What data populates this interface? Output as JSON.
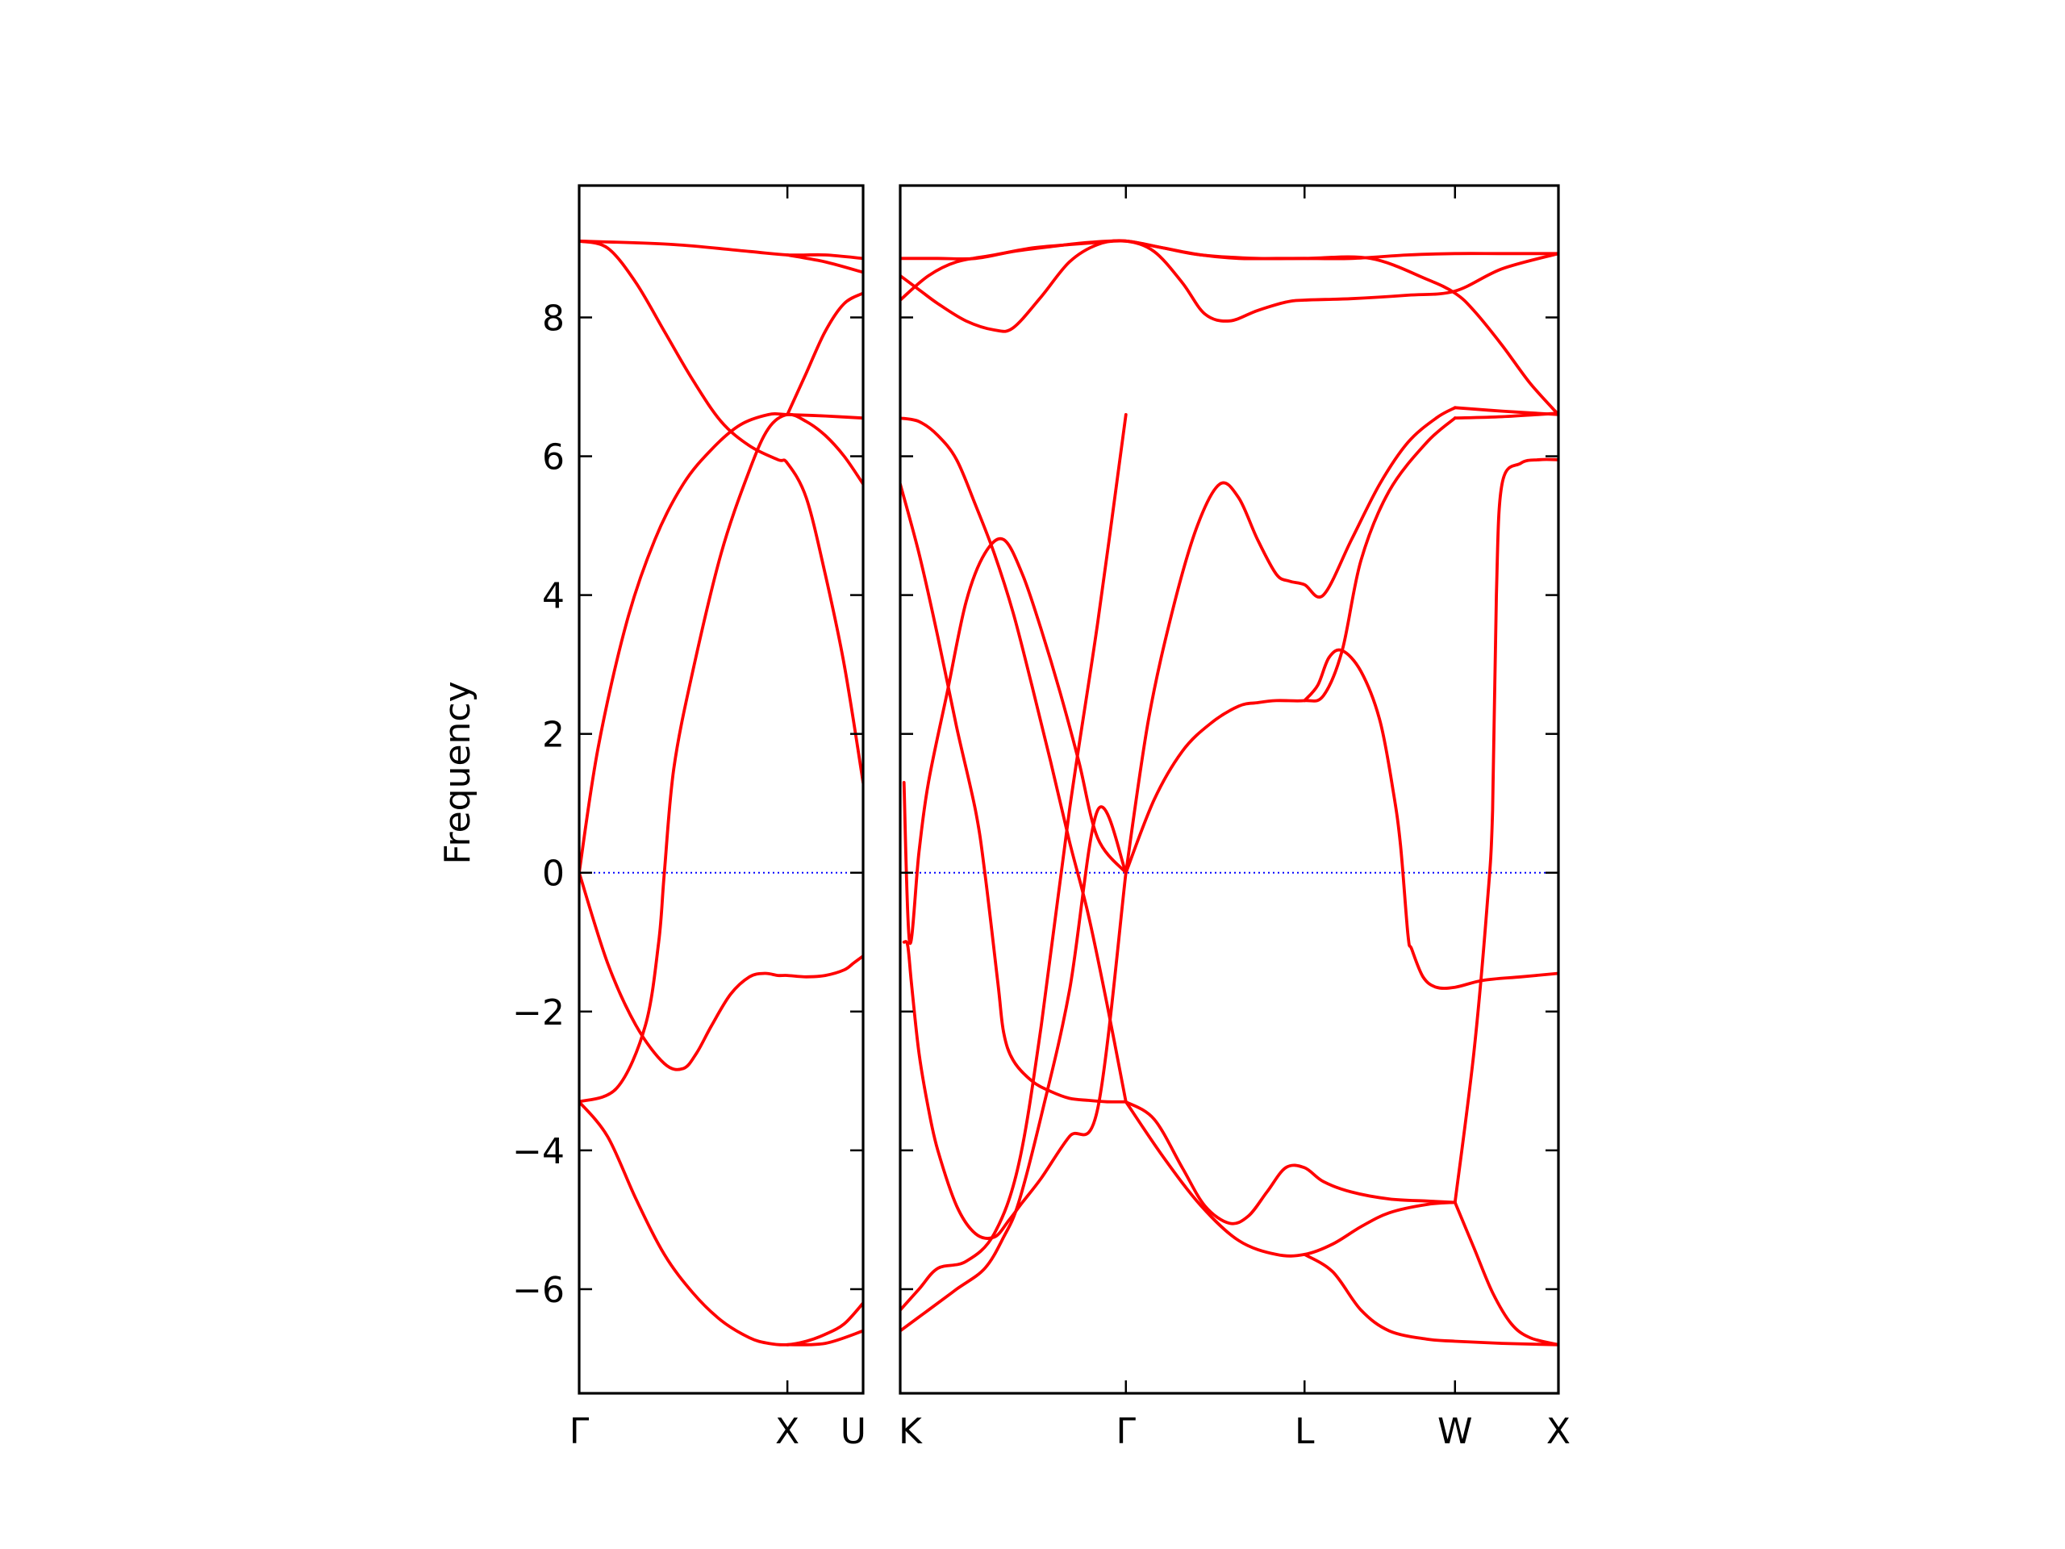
{
  "chart_data": {
    "type": "line",
    "ylabel": "Frequency",
    "ylim": [
      -7.5,
      9.9
    ],
    "yticks": [
      -6,
      -4,
      -2,
      0,
      2,
      4,
      6,
      8
    ],
    "ytick_labels": [
      "−6",
      "−4",
      "−2",
      "0",
      "2",
      "4",
      "6",
      "8"
    ],
    "band_color": "#ff0000",
    "zero_line_color": "#0000ff",
    "grid": false,
    "panels": [
      {
        "path": [
          "Γ",
          "X",
          "U"
        ],
        "x_range": [
          0,
          1.5
        ],
        "xticks": [
          {
            "x": 0,
            "label": "Γ"
          },
          {
            "x": 1.1,
            "label": "X"
          },
          {
            "x": 1.5,
            "label": "U"
          }
        ],
        "series": [
          {
            "x": [
              0,
              0.5,
              0.9,
              1.1,
              1.3,
              1.5
            ],
            "y": [
              9.1,
              9.05,
              8.95,
              8.9,
              8.9,
              8.85
            ]
          },
          {
            "x": [
              0,
              0.15,
              0.3,
              0.45,
              0.6,
              0.75,
              0.9,
              1.05,
              1.1,
              1.2,
              1.3,
              1.4,
              1.5
            ],
            "y": [
              9.1,
              9.0,
              8.5,
              7.8,
              7.1,
              6.5,
              6.15,
              5.95,
              5.9,
              5.4,
              4.3,
              3.0,
              1.3
            ]
          },
          {
            "x": [
              0,
              0.1,
              0.25,
              0.4,
              0.55,
              0.7,
              0.85,
              1.0,
              1.1,
              1.3,
              1.5
            ],
            "y": [
              0,
              1.8,
              3.6,
              4.8,
              5.6,
              6.1,
              6.45,
              6.6,
              6.6,
              6.58,
              6.55
            ]
          },
          {
            "x": [
              0,
              0.2,
              0.35,
              0.42,
              0.45,
              0.5,
              0.6,
              0.75,
              0.9,
              1.0,
              1.1,
              1.2,
              1.3,
              1.4,
              1.5
            ],
            "y": [
              -3.3,
              -3.1,
              -2.2,
              -1.0,
              0.0,
              1.5,
              2.9,
              4.6,
              5.8,
              6.4,
              6.6,
              6.5,
              6.3,
              6.0,
              5.6
            ]
          },
          {
            "x": [
              0,
              0.15,
              0.3,
              0.45,
              0.55,
              0.62,
              0.7,
              0.8,
              0.9,
              0.98,
              1.05,
              1.1,
              1.2,
              1.3,
              1.4,
              1.45,
              1.5
            ],
            "y": [
              0,
              -1.3,
              -2.2,
              -2.75,
              -2.82,
              -2.6,
              -2.2,
              -1.75,
              -1.5,
              -1.45,
              -1.48,
              -1.48,
              -1.5,
              -1.48,
              -1.4,
              -1.3,
              -1.2
            ]
          },
          {
            "x": [
              0,
              0.15,
              0.3,
              0.45,
              0.6,
              0.75,
              0.9,
              1.0,
              1.1,
              1.2,
              1.3,
              1.4,
              1.5
            ],
            "y": [
              -3.3,
              -3.8,
              -4.7,
              -5.5,
              -6.05,
              -6.45,
              -6.7,
              -6.78,
              -6.8,
              -6.75,
              -6.65,
              -6.5,
              -6.2
            ]
          },
          {
            "x": [
              1.1,
              1.3,
              1.5
            ],
            "y": [
              -6.8,
              -6.78,
              -6.6
            ]
          },
          {
            "x": [
              1.1,
              1.2,
              1.3,
              1.4,
              1.5
            ],
            "y": [
              6.6,
              7.2,
              7.8,
              8.2,
              8.35
            ]
          },
          {
            "x": [
              1.1,
              1.3,
              1.5
            ],
            "y": [
              8.9,
              8.8,
              8.65
            ]
          }
        ]
      },
      {
        "path": [
          "K",
          "Γ",
          "L",
          "W",
          "X"
        ],
        "x_range": [
          0,
          3.5
        ],
        "xticks": [
          {
            "x": 0,
            "label": "K"
          },
          {
            "x": 1.2,
            "label": "Γ"
          },
          {
            "x": 2.15,
            "label": "L"
          },
          {
            "x": 2.95,
            "label": "W"
          },
          {
            "x": 3.5,
            "label": "X"
          }
        ],
        "series": [
          {
            "x": [
              0,
              0.2,
              0.4,
              0.6,
              0.8,
              1.0,
              1.2,
              1.4,
              1.6,
              1.8,
              2.0,
              2.15,
              2.4,
              2.7,
              2.95,
              3.2,
              3.5
            ],
            "y": [
              8.85,
              8.85,
              8.85,
              8.95,
              9.02,
              9.08,
              9.1,
              9.0,
              8.9,
              8.85,
              8.85,
              8.85,
              8.85,
              8.9,
              8.92,
              8.92,
              8.92
            ]
          },
          {
            "x": [
              0,
              0.1,
              0.2,
              0.35,
              0.5,
              0.6,
              0.75,
              0.9,
              1.05,
              1.2,
              1.35,
              1.5,
              1.62,
              1.75,
              1.9,
              2.05,
              2.15,
              2.4,
              2.7,
              2.95,
              3.2,
              3.5
            ],
            "y": [
              8.6,
              8.4,
              8.2,
              7.95,
              7.82,
              7.85,
              8.3,
              8.8,
              9.05,
              9.1,
              8.95,
              8.5,
              8.05,
              7.95,
              8.1,
              8.22,
              8.25,
              8.27,
              8.32,
              8.38,
              8.7,
              8.92
            ]
          },
          {
            "x": [
              0,
              0.15,
              0.3,
              0.5,
              0.7,
              0.9,
              1.05,
              1.2,
              1.4,
              1.6,
              1.9,
              2.15,
              2.5,
              2.8,
              2.95,
              3.05,
              3.2,
              3.35,
              3.5
            ],
            "y": [
              8.25,
              8.6,
              8.8,
              8.9,
              9.0,
              9.05,
              9.08,
              9.1,
              9.0,
              8.9,
              8.85,
              8.85,
              8.85,
              8.55,
              8.35,
              8.1,
              7.6,
              7.05,
              6.6
            ]
          },
          {
            "x": [
              0,
              0.1,
              0.2,
              0.3,
              0.4,
              0.5,
              0.6,
              0.7,
              0.8,
              0.9,
              1.0,
              1.1,
              1.2
            ],
            "y": [
              6.55,
              6.5,
              6.3,
              5.95,
              5.3,
              4.6,
              3.75,
              2.7,
              1.6,
              0.45,
              -0.6,
              -1.9,
              -3.3
            ]
          },
          {
            "x": [
              0,
              0.1,
              0.2,
              0.3,
              0.4,
              0.45,
              0.52,
              0.55,
              0.6,
              0.7,
              0.8,
              0.9,
              1.0,
              1.1,
              1.2
            ],
            "y": [
              5.6,
              4.6,
              3.4,
              2.1,
              0.9,
              0.0,
              -1.6,
              -2.3,
              -2.7,
              -3.0,
              -3.15,
              -3.25,
              -3.28,
              -3.3,
              -3.3
            ]
          },
          {
            "x": [
              0,
              0.15,
              0.3,
              0.45,
              0.55,
              0.63,
              0.75,
              0.9,
              1.05,
              1.2
            ],
            "y": [
              -6.6,
              -6.3,
              -6.0,
              -5.7,
              -5.25,
              -4.75,
              -3.5,
              -1.7,
              0.9,
              0.0
            ]
          },
          {
            "x": [
              0,
              0.1,
              0.2,
              0.35,
              0.5,
              0.63,
              0.75,
              0.9,
              1.05,
              1.2
            ],
            "y": [
              -6.3,
              -6.0,
              -5.7,
              -5.6,
              -5.2,
              -4.2,
              -2.2,
              0.9,
              3.6,
              6.6
            ]
          },
          {
            "x": [
              0.02,
              0.04,
              0.06,
              0.1,
              0.15,
              0.2,
              0.3,
              0.4,
              0.5,
              0.58,
              0.65,
              0.75,
              0.9,
              1.05,
              1.2
            ],
            "y": [
              -1.0,
              -1.05,
              -1.6,
              -2.6,
              -3.4,
              -4.0,
              -4.8,
              -5.2,
              -5.25,
              -5.0,
              -4.75,
              -4.4,
              -3.8,
              -3.4,
              0.0
            ]
          },
          {
            "x": [
              0.02,
              0.05,
              0.1,
              0.15,
              0.25,
              0.35,
              0.45,
              0.55,
              0.65,
              0.75,
              0.85,
              0.95,
              1.05,
              1.2
            ],
            "y": [
              1.3,
              -1.0,
              0.3,
              1.3,
              2.6,
              3.9,
              4.6,
              4.8,
              4.3,
              3.5,
              2.6,
              1.6,
              0.5,
              0.0
            ]
          },
          {
            "x": [
              1.2,
              1.32,
              1.45,
              1.58,
              1.7,
              1.8,
              1.9,
              2.0,
              2.07,
              2.15,
              2.25,
              2.4,
              2.55,
              2.7,
              2.85,
              2.95
            ],
            "y": [
              0.0,
              2.2,
              3.8,
              5.0,
              5.6,
              5.4,
              4.8,
              4.3,
              4.2,
              4.15,
              4.0,
              4.8,
              5.6,
              6.2,
              6.55,
              6.7
            ]
          },
          {
            "x": [
              1.2,
              1.35,
              1.5,
              1.65,
              1.8,
              1.9,
              2.0,
              2.15,
              2.25,
              2.35,
              2.45,
              2.6,
              2.8,
              2.95
            ],
            "y": [
              0.0,
              1.05,
              1.75,
              2.15,
              2.4,
              2.45,
              2.48,
              2.48,
              2.55,
              3.2,
              4.5,
              5.5,
              6.2,
              6.55
            ]
          },
          {
            "x": [
              2.95,
              3.2,
              3.5
            ],
            "y": [
              6.7,
              6.65,
              6.6
            ]
          },
          {
            "x": [
              2.95,
              3.2,
              3.5
            ],
            "y": [
              6.55,
              6.57,
              6.62
            ]
          },
          {
            "x": [
              2.15,
              2.22,
              2.28,
              2.35,
              2.45,
              2.55,
              2.62,
              2.66,
              2.7,
              2.72,
              2.78,
              2.85,
              2.95,
              3.1,
              3.3,
              3.5
            ],
            "y": [
              2.48,
              2.7,
              3.1,
              3.2,
              2.9,
              2.2,
              1.2,
              0.4,
              -0.9,
              -1.1,
              -1.5,
              -1.65,
              -1.65,
              -1.55,
              -1.5,
              -1.45
            ]
          },
          {
            "x": [
              1.2,
              1.35,
              1.5,
              1.62,
              1.75,
              1.85,
              1.95,
              2.05,
              2.15,
              2.25,
              2.4,
              2.6,
              2.8,
              2.95
            ],
            "y": [
              -3.3,
              -3.55,
              -4.25,
              -4.8,
              -5.05,
              -4.95,
              -4.6,
              -4.25,
              -4.25,
              -4.45,
              -4.6,
              -4.7,
              -4.73,
              -4.75
            ]
          },
          {
            "x": [
              1.2,
              1.4,
              1.6,
              1.8,
              2.0,
              2.15,
              2.3,
              2.45,
              2.6,
              2.8,
              2.95
            ],
            "y": [
              -3.3,
              -4.1,
              -4.8,
              -5.3,
              -5.5,
              -5.5,
              -5.35,
              -5.1,
              -4.9,
              -4.78,
              -4.75
            ]
          },
          {
            "x": [
              2.15,
              2.3,
              2.45,
              2.6,
              2.8,
              2.95,
              3.2,
              3.5
            ],
            "y": [
              -5.5,
              -5.75,
              -6.3,
              -6.6,
              -6.72,
              -6.75,
              -6.78,
              -6.8
            ]
          },
          {
            "x": [
              2.95,
              3.05,
              3.15,
              3.25,
              3.35,
              3.5
            ],
            "y": [
              -4.75,
              -5.4,
              -6.05,
              -6.5,
              -6.7,
              -6.8
            ]
          },
          {
            "x": [
              2.95,
              3.05,
              3.12,
              3.15,
              3.17,
              3.2,
              3.3,
              3.4,
              3.5
            ],
            "y": [
              -4.75,
              -2.6,
              -0.5,
              0.9,
              4.0,
              5.6,
              5.9,
              5.95,
              5.95
            ]
          }
        ]
      }
    ]
  }
}
